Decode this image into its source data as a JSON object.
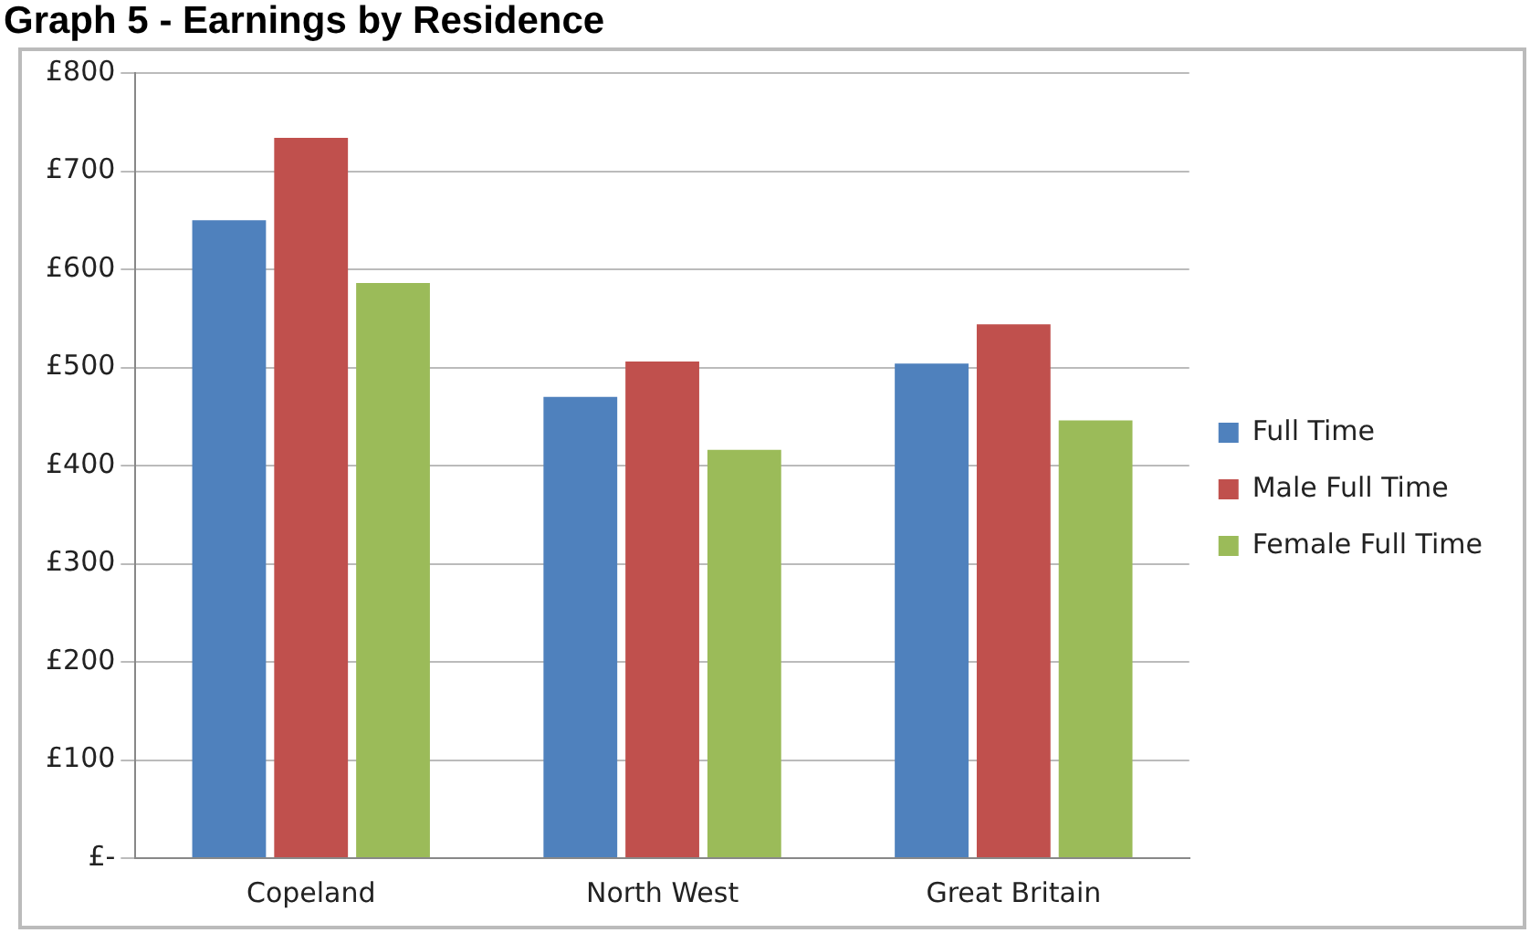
{
  "chart_data": {
    "type": "bar",
    "title": "Graph 5 - Earnings by Residence",
    "categories": [
      "Copeland",
      "North West",
      "Great Britain"
    ],
    "series": [
      {
        "name": "Full Time",
        "color": "#4f81bd",
        "values": [
          650,
          470,
          504
        ]
      },
      {
        "name": "Male Full Time",
        "color": "#c0504d",
        "values": [
          734,
          506,
          544
        ]
      },
      {
        "name": "Female Full Time",
        "color": "#9bbb59",
        "values": [
          586,
          416,
          446
        ]
      }
    ],
    "ylim": [
      0,
      800
    ],
    "yticks": [
      {
        "value": 0,
        "label": "£-"
      },
      {
        "value": 100,
        "label": "£100"
      },
      {
        "value": 200,
        "label": "£200"
      },
      {
        "value": 300,
        "label": "£300"
      },
      {
        "value": 400,
        "label": "£400"
      },
      {
        "value": 500,
        "label": "£500"
      },
      {
        "value": 600,
        "label": "£600"
      },
      {
        "value": 700,
        "label": "£700"
      },
      {
        "value": 800,
        "label": "£800"
      }
    ],
    "grid": "y",
    "legend": "right"
  }
}
